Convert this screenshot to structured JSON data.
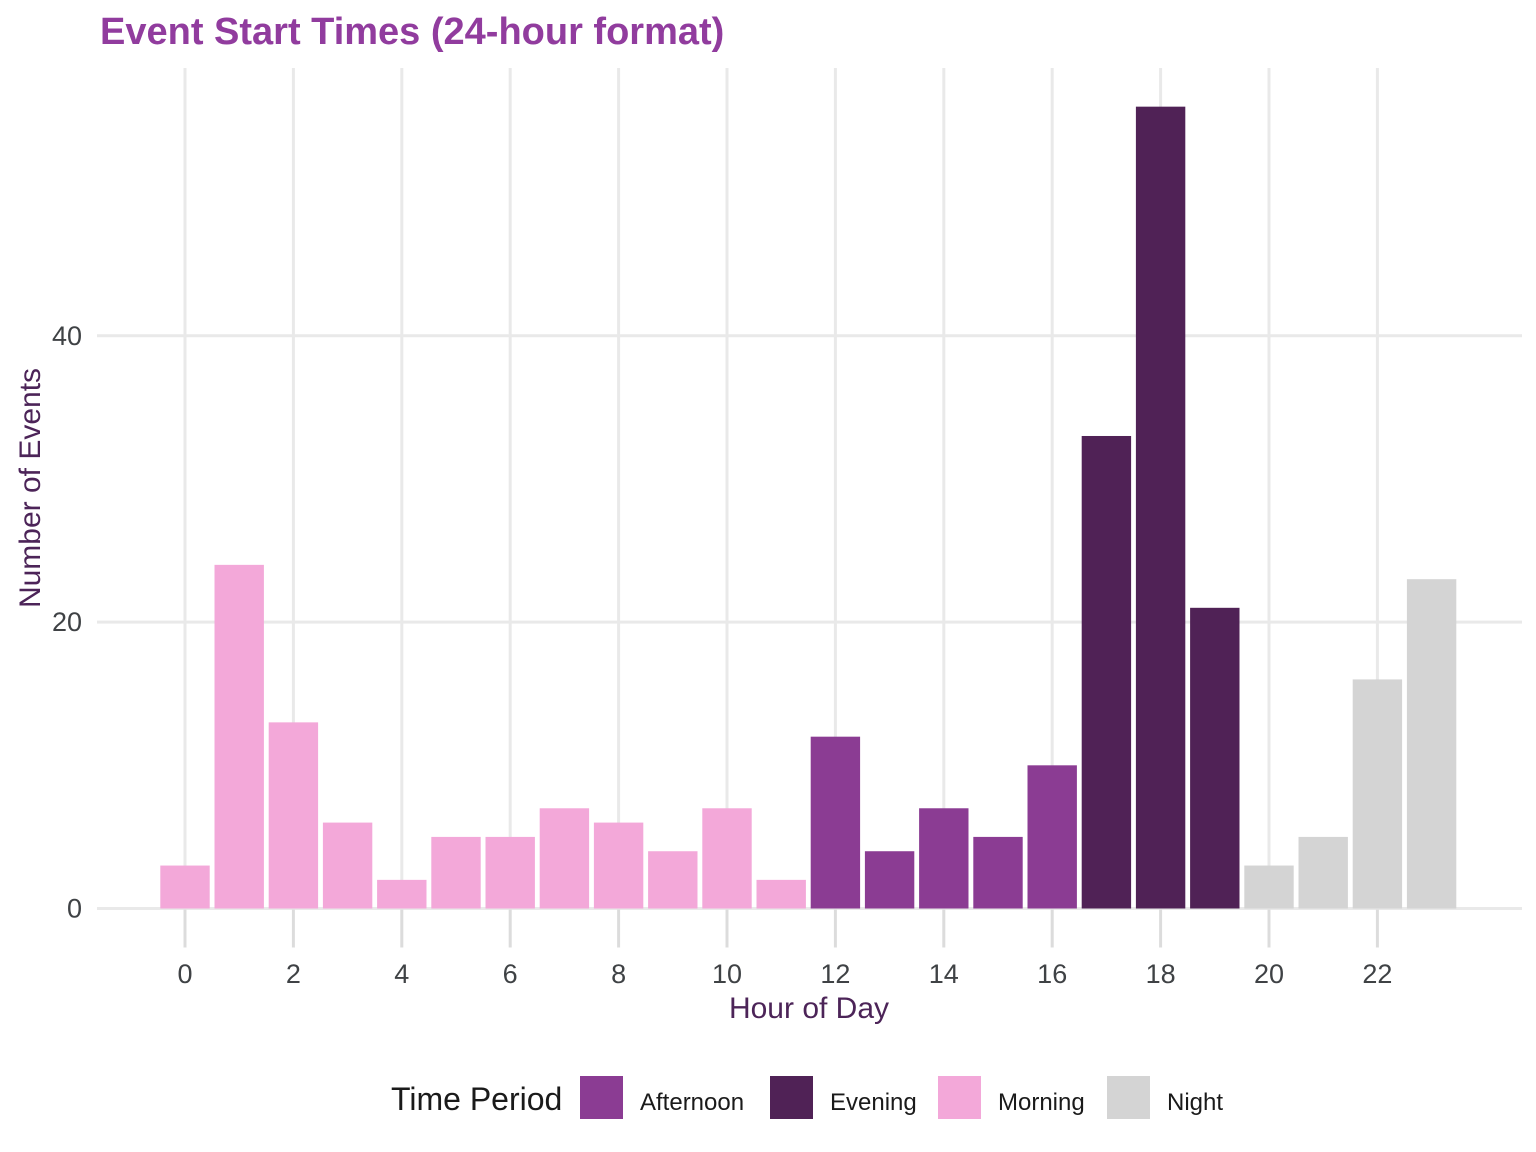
{
  "chart_data": {
    "type": "bar",
    "title": "Event Start Times (24-hour format)",
    "xlabel": "Hour of Day",
    "ylabel": "Number of Events",
    "x": [
      0,
      1,
      2,
      3,
      4,
      5,
      6,
      7,
      8,
      9,
      10,
      11,
      12,
      13,
      14,
      15,
      16,
      17,
      18,
      19,
      20,
      21,
      22,
      23
    ],
    "values": [
      3,
      24,
      13,
      6,
      2,
      5,
      5,
      7,
      6,
      4,
      7,
      2,
      12,
      4,
      7,
      5,
      10,
      33,
      56,
      21,
      3,
      5,
      16,
      23
    ],
    "period_by_hour": [
      "Morning",
      "Morning",
      "Morning",
      "Morning",
      "Morning",
      "Morning",
      "Morning",
      "Morning",
      "Morning",
      "Morning",
      "Morning",
      "Morning",
      "Afternoon",
      "Afternoon",
      "Afternoon",
      "Afternoon",
      "Afternoon",
      "Evening",
      "Evening",
      "Evening",
      "Night",
      "Night",
      "Night",
      "Night"
    ],
    "x_ticks": [
      0,
      2,
      4,
      6,
      8,
      10,
      12,
      14,
      16,
      18,
      20,
      22
    ],
    "y_ticks": [
      0,
      20,
      40
    ],
    "ylim": [
      0,
      58.7
    ],
    "grid": "major-only",
    "legend": {
      "position": "bottom",
      "title": "Time Period",
      "entries": [
        {
          "label": "Afternoon",
          "color": "#8B3C93"
        },
        {
          "label": "Evening",
          "color": "#502256"
        },
        {
          "label": "Morning",
          "color": "#F3A8D9"
        },
        {
          "label": "Night",
          "color": "#D4D4D4"
        }
      ]
    }
  },
  "colors": {
    "title": "#913C9E",
    "axis_title": "#4C2458",
    "tick_label": "#3F4245",
    "gridline": "#E9E9E9",
    "tick_mark": "#DCDCDC",
    "legend_text": "#1A1A1A",
    "background": "#FFFFFF"
  }
}
